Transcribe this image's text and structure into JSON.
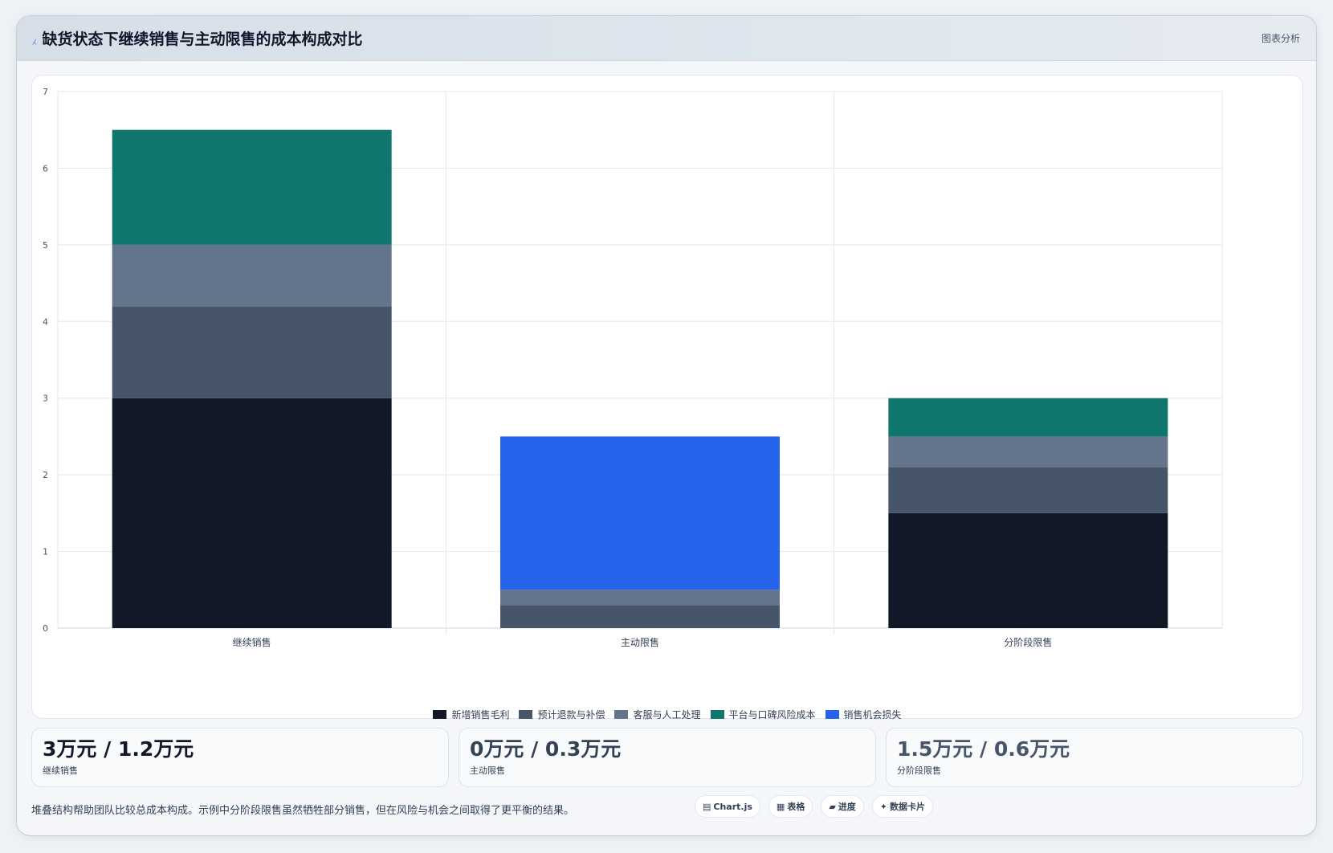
{
  "header": {
    "icon": "chart-line-icon",
    "icon_glyph": "⁁",
    "title": "缺货状态下继续销售与主动限售的成本构成对比",
    "right_label": "图表分析"
  },
  "chart_data": {
    "type": "bar",
    "stacked": true,
    "categories": [
      "继续销售",
      "主动限售",
      "分阶段限售"
    ],
    "series": [
      {
        "name": "新增销售毛利",
        "color": "#111827",
        "values": [
          3,
          0,
          1.5
        ]
      },
      {
        "name": "预计退款与补偿",
        "color": "#475569",
        "values": [
          1.2,
          0.3,
          0.6
        ]
      },
      {
        "name": "客服与人工处理",
        "color": "#64748b",
        "values": [
          0.8,
          0.2,
          0.4
        ]
      },
      {
        "name": "平台与口碑风险成本",
        "color": "#0f766e",
        "values": [
          1.5,
          0,
          0.5
        ]
      },
      {
        "name": "销售机会损失",
        "color": "#2563eb",
        "values": [
          0,
          2,
          0
        ]
      }
    ],
    "ylim": [
      0,
      7
    ],
    "yticks": [
      "0",
      "1",
      "2",
      "3",
      "4",
      "5",
      "6",
      "7"
    ],
    "grid": true,
    "legend_position": "bottom"
  },
  "stats": [
    {
      "value": "3万元 / 1.2万元",
      "label": "继续销售",
      "color": "#111827"
    },
    {
      "value": "0万元 / 0.3万元",
      "label": "主动限售",
      "color": "#334155"
    },
    {
      "value": "1.5万元 / 0.6万元",
      "label": "分阶段限售",
      "color": "#475569"
    }
  ],
  "footer": {
    "note": "堆叠结构帮助团队比较总成本构成。示例中分阶段限售虽然牺牲部分销售，但在风险与机会之间取得了更平衡的结果。",
    "pills": [
      {
        "icon": "chart-icon",
        "glyph": "▤",
        "label": "Chart.js"
      },
      {
        "icon": "table-icon",
        "glyph": "▦",
        "label": "表格"
      },
      {
        "icon": "progress-icon",
        "glyph": "▰",
        "label": "进度"
      },
      {
        "icon": "sparkle-icon",
        "glyph": "✦",
        "label": "数据卡片"
      }
    ]
  }
}
